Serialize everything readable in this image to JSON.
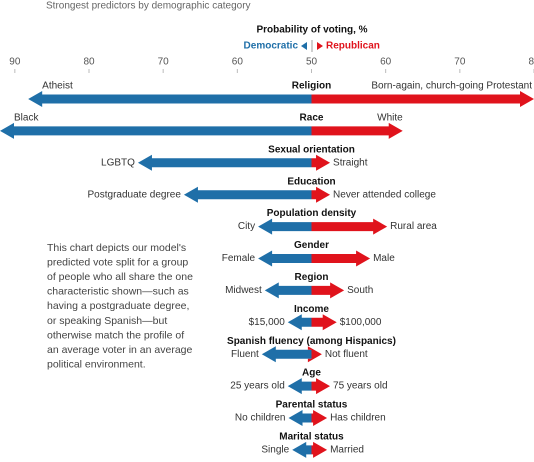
{
  "chart_data": {
    "type": "diverging-arrow",
    "subtitle": "Strongest predictors by demographic category",
    "axis_title": "Probability of voting, %",
    "xlim": [
      8,
      80
    ],
    "xticks": [
      {
        "value": 10,
        "label": "90"
      },
      {
        "value": 20,
        "label": "80"
      },
      {
        "value": 30,
        "label": "70"
      },
      {
        "value": 40,
        "label": "60"
      },
      50,
      60,
      70,
      80
    ],
    "categories": [
      "Religion",
      "Race",
      "Sexual orientation",
      "Education",
      "Population density",
      "Gender",
      "Region",
      "Income",
      "Spanish fluency (among Hispanics)",
      "Age",
      "Parental status",
      "Marital status"
    ],
    "left_labels": [
      "Atheist",
      "Black",
      "LGBTQ",
      "Postgraduate degree",
      "City",
      "Female",
      "Midwest",
      "$15,000",
      "Fluent",
      "25 years old",
      "No children",
      "Single"
    ],
    "right_labels": [
      "Born-again, church-going Protestant",
      "White",
      "Straight",
      "Never attended college",
      "Rural area",
      "Male",
      "South",
      "$100,000",
      "Not fluent",
      "75 years old",
      "Has children",
      "Married"
    ],
    "series": [
      {
        "name": "Democratic",
        "color": "#1f6fa8",
        "values": [
          11.8,
          8,
          26.6,
          32.8,
          42.8,
          42.8,
          43.7,
          46.8,
          43.3,
          46.8,
          46.9,
          47.4
        ]
      },
      {
        "name": "Republican",
        "color": "#e0131c",
        "values": [
          80,
          62.3,
          52.5,
          52.5,
          60.2,
          57.9,
          54.4,
          53.4,
          51.4,
          52.5,
          52.1,
          52.1
        ]
      }
    ],
    "note": [
      "This chart depicts our model's",
      "predicted vote split for a group",
      "of people who all share the one",
      "characteristic shown—such as",
      "having a postgraduate degree,",
      "or speaking Spanish—but",
      "otherwise match the profile of",
      "an average voter in an average",
      "political environment."
    ]
  }
}
